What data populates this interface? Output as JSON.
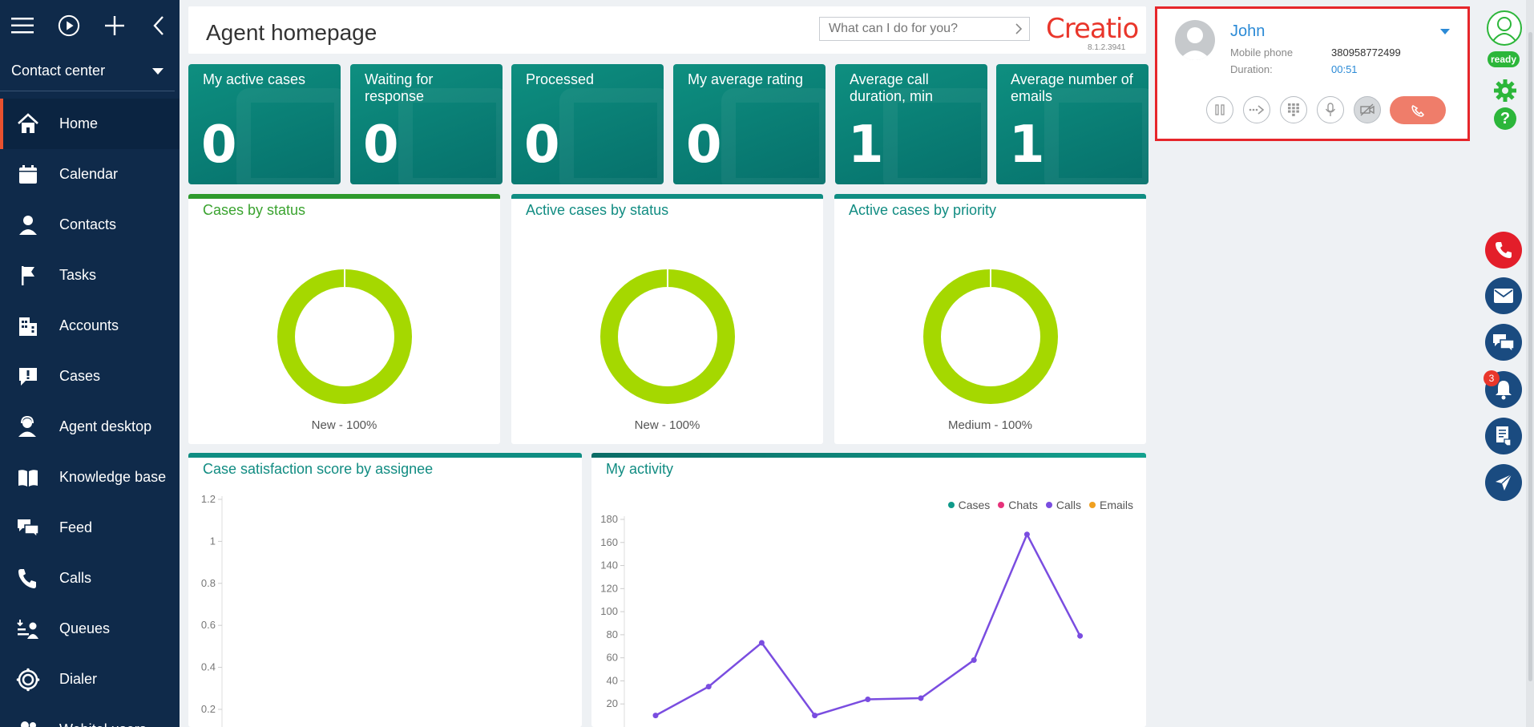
{
  "sidebar": {
    "workplace": "Contact center",
    "items": [
      {
        "label": "Home",
        "icon": "home-icon",
        "active": true
      },
      {
        "label": "Calendar",
        "icon": "calendar-icon"
      },
      {
        "label": "Contacts",
        "icon": "person-icon"
      },
      {
        "label": "Tasks",
        "icon": "flag-icon"
      },
      {
        "label": "Accounts",
        "icon": "building-icon"
      },
      {
        "label": "Cases",
        "icon": "case-icon"
      },
      {
        "label": "Agent desktop",
        "icon": "agent-icon"
      },
      {
        "label": "Knowledge base",
        "icon": "book-icon"
      },
      {
        "label": "Feed",
        "icon": "chat-icon"
      },
      {
        "label": "Calls",
        "icon": "phone-icon"
      },
      {
        "label": "Queues",
        "icon": "queue-icon"
      },
      {
        "label": "Dialer",
        "icon": "dialer-icon"
      },
      {
        "label": "Webitel users",
        "icon": "users-icon"
      }
    ]
  },
  "header": {
    "title": "Agent homepage",
    "search_placeholder": "What can I do for you?",
    "logo": "Creatio",
    "version": "8.1.2.3941"
  },
  "kpis": [
    {
      "title": "My active cases",
      "value": "0"
    },
    {
      "title": "Waiting for response",
      "value": "0"
    },
    {
      "title": "Processed",
      "value": "0"
    },
    {
      "title": "My average rating",
      "value": "0"
    },
    {
      "title": "Average call duration, min",
      "value": "1"
    },
    {
      "title": "Average number of emails",
      "value": "1"
    }
  ],
  "donuts": [
    {
      "title": "Cases by status",
      "label": "New - 100%",
      "color": "#a5d800",
      "title_color": "#3aa32f",
      "bar_color": "#2e9a2c"
    },
    {
      "title": "Active cases by status",
      "label": "New - 100%",
      "color": "#a5d800",
      "title_color": "#118c82",
      "bar_color": "#0f8d82"
    },
    {
      "title": "Active cases by priority",
      "label": "Medium - 100%",
      "color": "#a5d800",
      "title_color": "#118c82",
      "bar_color": "#0f8d82"
    }
  ],
  "satisfaction_panel": {
    "title": "Case satisfaction score by assignee",
    "y_ticks": [
      "1.2",
      "1",
      "0.8",
      "0.6",
      "0.4",
      "0.2"
    ]
  },
  "activity_panel": {
    "title": "My activity",
    "legend": [
      {
        "name": "Cases",
        "color": "#0f9a8a"
      },
      {
        "name": "Chats",
        "color": "#e6327a"
      },
      {
        "name": "Calls",
        "color": "#7a4de0"
      },
      {
        "name": "Emails",
        "color": "#f0a020"
      }
    ]
  },
  "chart_data": {
    "type": "line",
    "title": "My activity",
    "ylim": [
      0,
      180
    ],
    "y_ticks": [
      "180",
      "160",
      "140",
      "120",
      "100",
      "80",
      "60",
      "40",
      "20"
    ],
    "series": [
      {
        "name": "Calls",
        "color": "#7a4de0",
        "points": [
          [
            0,
            10
          ],
          [
            1,
            35
          ],
          [
            2,
            73
          ],
          [
            3,
            10
          ],
          [
            4,
            24
          ],
          [
            5,
            25
          ],
          [
            6,
            58
          ],
          [
            7,
            167
          ],
          [
            8,
            79
          ]
        ]
      }
    ]
  },
  "call": {
    "name": "John",
    "phone_label": "Mobile phone",
    "phone": "380958772499",
    "duration_label": "Duration:",
    "duration": "00:51"
  },
  "rail": {
    "status": "ready",
    "notifications": "3"
  }
}
